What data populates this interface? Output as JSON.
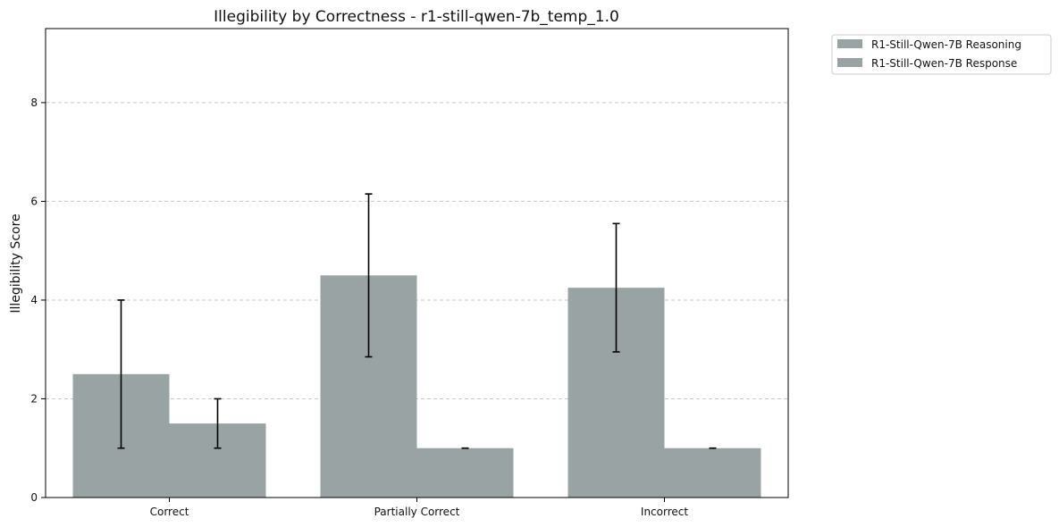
{
  "chart_data": {
    "type": "bar",
    "title": "Illegibility by Correctness - r1-still-qwen-7b_temp_1.0",
    "xlabel": "",
    "ylabel": "Illegibility Score",
    "categories": [
      "Correct",
      "Partially Correct",
      "Incorrect"
    ],
    "ylim": [
      0,
      9.5
    ],
    "yticks": [
      0,
      2,
      4,
      6,
      8
    ],
    "grid": "y-dashed",
    "legend_position": "outside-top-right",
    "bar_color": "#99a3a3",
    "series": [
      {
        "name": "R1-Still-Qwen-7B Reasoning",
        "values": [
          2.5,
          4.5,
          4.25
        ],
        "err_low": [
          1.0,
          2.85,
          2.95
        ],
        "err_high": [
          4.0,
          6.15,
          5.55
        ]
      },
      {
        "name": "R1-Still-Qwen-7B Response",
        "values": [
          1.5,
          1.0,
          1.0
        ],
        "err_low": [
          1.0,
          1.0,
          1.0
        ],
        "err_high": [
          2.0,
          1.0,
          1.0
        ]
      }
    ]
  }
}
